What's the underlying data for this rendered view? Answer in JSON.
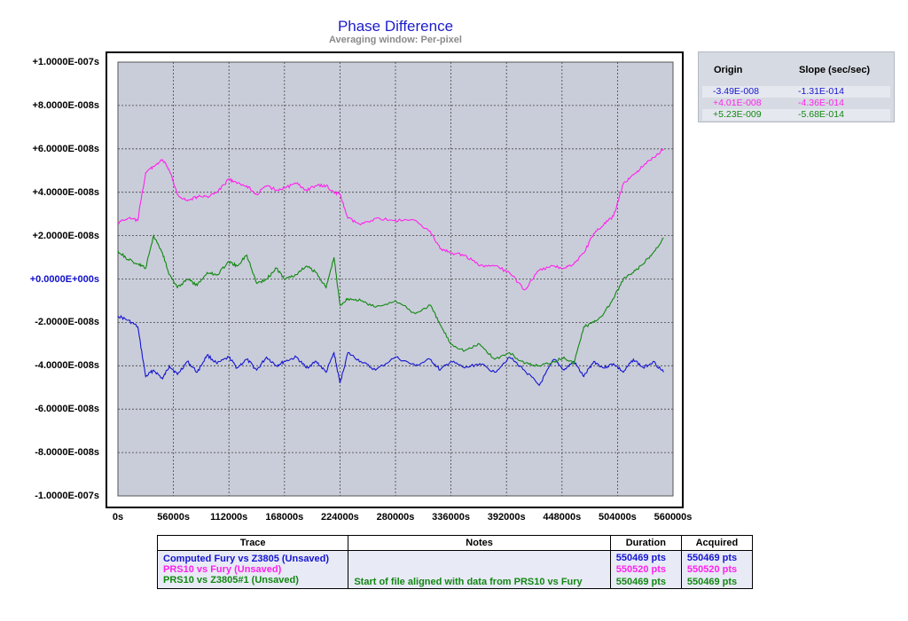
{
  "colors": {
    "trace1": "#1515d0",
    "trace2": "#ff22ee",
    "trace3": "#118811",
    "plot_bg": "#c9cdd9",
    "grid": "#444444"
  },
  "chart_data": {
    "type": "line",
    "title": "Phase Difference",
    "subtitle": "Averaging window: Per-pixel",
    "xlim": [
      0,
      560000
    ],
    "ylim": [
      -1e-07,
      1e-07
    ],
    "x_ticks": [
      "0s",
      "56000s",
      "112000s",
      "168000s",
      "224000s",
      "280000s",
      "336000s",
      "392000s",
      "448000s",
      "504000s",
      "560000s"
    ],
    "y_ticks": [
      "+1.0000E-007s",
      "+8.0000E-008s",
      "+6.0000E-008s",
      "+4.0000E-008s",
      "+2.0000E-008s",
      "+0.0000E+000s",
      "-2.0000E-008s",
      "-4.0000E-008s",
      "-6.0000E-008s",
      "-8.0000E-008s",
      "-1.0000E-007s"
    ],
    "grid": true,
    "x_samples": [
      0,
      10000,
      20000,
      28000,
      36000,
      45000,
      52000,
      60000,
      70000,
      80000,
      90000,
      100000,
      112000,
      120000,
      130000,
      140000,
      150000,
      160000,
      168000,
      180000,
      190000,
      200000,
      210000,
      218000,
      224000,
      232000,
      245000,
      260000,
      280000,
      300000,
      315000,
      325000,
      336000,
      350000,
      365000,
      380000,
      395000,
      410000,
      425000,
      440000,
      450000,
      460000,
      470000,
      480000,
      490000,
      500000,
      510000,
      520000,
      530000,
      540000,
      550469
    ],
    "series": [
      {
        "name": "Computed Fury vs Z3805 (Unsaved)",
        "values": [
          -1.7e-08,
          -1.9e-08,
          -2.2e-08,
          -4.5e-08,
          -4.2e-08,
          -4.6e-08,
          -4e-08,
          -4.4e-08,
          -3.8e-08,
          -4.3e-08,
          -3.5e-08,
          -3.9e-08,
          -3.6e-08,
          -4.1e-08,
          -3.7e-08,
          -4.2e-08,
          -3.6e-08,
          -4e-08,
          -3.8e-08,
          -3.6e-08,
          -4.1e-08,
          -3.8e-08,
          -4.3e-08,
          -3.4e-08,
          -4.8e-08,
          -3.4e-08,
          -3.8e-08,
          -4.2e-08,
          -3.6e-08,
          -4e-08,
          -3.7e-08,
          -4.2e-08,
          -3.8e-08,
          -4.1e-08,
          -3.9e-08,
          -4.3e-08,
          -3.6e-08,
          -4.2e-08,
          -4.9e-08,
          -3.7e-08,
          -4.2e-08,
          -3.8e-08,
          -4.5e-08,
          -3.8e-08,
          -4.1e-08,
          -3.9e-08,
          -4.3e-08,
          -3.7e-08,
          -4.1e-08,
          -3.8e-08,
          -4.3e-08
        ]
      },
      {
        "name": "PRS10 vs Fury (Unsaved)",
        "values": [
          2.6e-08,
          2.8e-08,
          2.7e-08,
          4.9e-08,
          5.2e-08,
          5.5e-08,
          5e-08,
          3.9e-08,
          3.6e-08,
          3.8e-08,
          3.8e-08,
          4e-08,
          4.6e-08,
          4.4e-08,
          4.3e-08,
          3.9e-08,
          4.3e-08,
          4.1e-08,
          4.2e-08,
          4.4e-08,
          4.1e-08,
          4.3e-08,
          4.3e-08,
          4e-08,
          3.9e-08,
          2.8e-08,
          2.5e-08,
          2.8e-08,
          2.7e-08,
          2.7e-08,
          2.2e-08,
          1.4e-08,
          1.2e-08,
          1.1e-08,
          6e-09,
          6e-09,
          3e-09,
          -5e-09,
          4e-09,
          6e-09,
          5e-09,
          7e-09,
          1.2e-08,
          2.1e-08,
          2.5e-08,
          2.9e-08,
          4.4e-08,
          4.8e-08,
          5.2e-08,
          5.6e-08,
          6e-08
        ]
      },
      {
        "name": "PRS10 vs Z3805#1 (Unsaved)",
        "values": [
          1.3e-08,
          9e-09,
          7e-09,
          5e-09,
          2e-08,
          1.2e-08,
          2e-09,
          -4e-09,
          0.0,
          -3e-09,
          3e-09,
          2e-09,
          8e-09,
          6e-09,
          1.1e-08,
          -2e-09,
          0.0,
          5e-09,
          0.0,
          2e-09,
          6e-09,
          3e-09,
          -4e-09,
          1e-08,
          -1.2e-08,
          -9e-09,
          -1e-08,
          -1.3e-08,
          -1e-08,
          -1.6e-08,
          -1.2e-08,
          -2.1e-08,
          -3e-08,
          -3.3e-08,
          -3e-08,
          -3.7e-08,
          -3.4e-08,
          -3.9e-08,
          -4e-08,
          -3.8e-08,
          -3.6e-08,
          -3.9e-08,
          -2.2e-08,
          -2e-08,
          -1.6e-08,
          -9e-09,
          0.0,
          3e-09,
          7e-09,
          1.2e-08,
          1.9e-08
        ]
      }
    ]
  },
  "fit_table": {
    "headers": {
      "origin": "Origin",
      "slope": "Slope (sec/sec)"
    },
    "rows": [
      {
        "origin": "-3.49E-008",
        "slope": "-1.31E-014"
      },
      {
        "origin": "+4.01E-008",
        "slope": "-4.36E-014"
      },
      {
        "origin": "+5.23E-009",
        "slope": "-5.68E-014"
      }
    ]
  },
  "trace_table": {
    "headers": {
      "trace": "Trace",
      "notes": "Notes",
      "duration": "Duration",
      "acquired": "Acquired"
    },
    "rows": [
      {
        "trace": "Computed Fury vs Z3805 (Unsaved)",
        "notes": "",
        "duration": "550469 pts",
        "acquired": "550469 pts"
      },
      {
        "trace": "PRS10 vs Fury (Unsaved)",
        "notes": "",
        "duration": "550520 pts",
        "acquired": "550520 pts"
      },
      {
        "trace": "PRS10 vs Z3805#1 (Unsaved)",
        "notes": "Start of file aligned with data from PRS10 vs Fury",
        "duration": "550469 pts",
        "acquired": "550469 pts"
      }
    ]
  }
}
